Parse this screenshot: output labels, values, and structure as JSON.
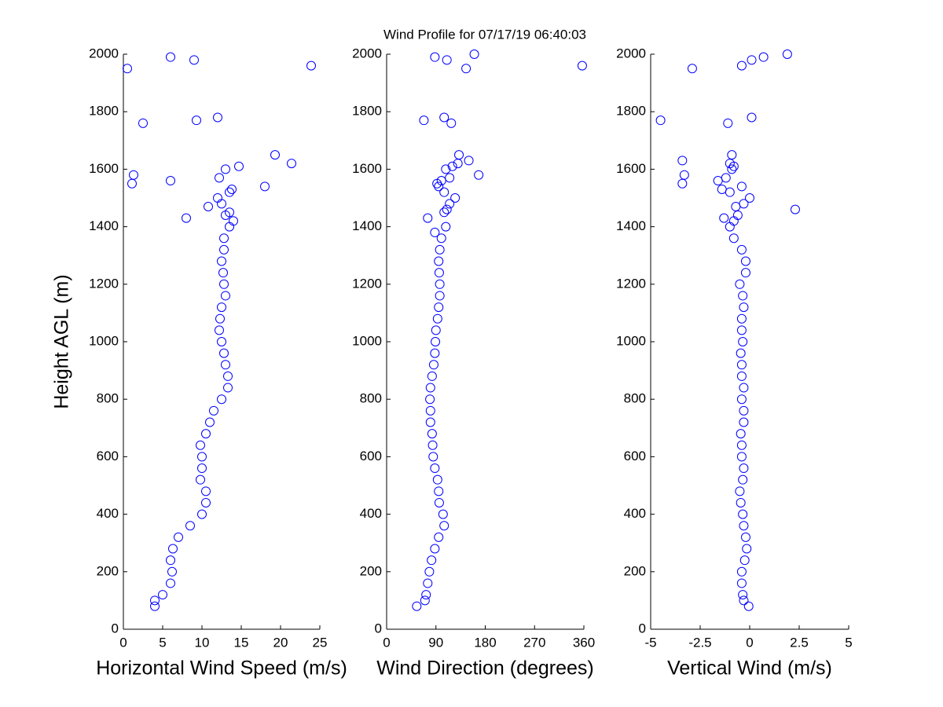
{
  "chart_data": [
    {
      "type": "scatter",
      "title": "Wind Profile for  07/17/19 06:40:03",
      "ylabel": "Height AGL (m)",
      "xlabel": "Horizontal Wind Speed (m/s)",
      "color": "#0000ff",
      "xlim": [
        0,
        25
      ],
      "xticks": [
        0,
        5,
        10,
        15,
        20,
        25
      ],
      "ylim": [
        0,
        2000
      ],
      "yticks": [
        0,
        200,
        400,
        600,
        800,
        1000,
        1200,
        1400,
        1600,
        1800,
        2000
      ],
      "x": [
        4,
        4,
        5,
        6,
        6.2,
        6,
        6.3,
        7,
        8.5,
        10,
        10.5,
        10.5,
        9.8,
        10,
        10,
        9.8,
        10.5,
        11,
        11.5,
        12.5,
        13.3,
        13.3,
        13,
        12.8,
        12.5,
        12.2,
        12.3,
        12.5,
        13,
        12.8,
        12.7,
        12.5,
        12.8,
        12.8,
        13.5,
        14,
        13,
        13.5,
        12.5,
        10.8,
        12,
        13.5,
        13.8,
        8,
        12.2,
        13,
        14.7,
        18,
        19.3,
        21.4,
        6,
        1.3,
        1.1,
        2.5,
        9.3,
        12,
        0.5,
        6,
        9,
        23.9
      ],
      "y": [
        80,
        100,
        120,
        160,
        200,
        240,
        280,
        320,
        360,
        400,
        440,
        480,
        520,
        560,
        600,
        640,
        680,
        720,
        760,
        800,
        840,
        880,
        920,
        960,
        1000,
        1040,
        1080,
        1120,
        1160,
        1200,
        1240,
        1280,
        1320,
        1360,
        1400,
        1420,
        1440,
        1450,
        1480,
        1470,
        1500,
        1520,
        1530,
        1430,
        1570,
        1600,
        1610,
        1540,
        1650,
        1620,
        1560,
        1580,
        1550,
        1760,
        1770,
        1780,
        1950,
        1990,
        1980,
        1960
      ]
    },
    {
      "type": "scatter",
      "xlabel": "Wind Direction (degrees)",
      "color": "#0000ff",
      "xlim": [
        0,
        360
      ],
      "xticks": [
        0,
        90,
        180,
        270,
        360
      ],
      "ylim": [
        0,
        2000
      ],
      "yticks": [
        0,
        200,
        400,
        600,
        800,
        1000,
        1200,
        1400,
        1600,
        1800,
        2000
      ],
      "x": [
        55,
        70,
        72,
        75,
        78,
        82,
        88,
        95,
        105,
        103,
        96,
        95,
        93,
        88,
        85,
        84,
        83,
        80,
        80,
        79,
        80,
        83,
        86,
        88,
        89,
        90,
        93,
        95,
        97,
        97,
        96,
        95,
        97,
        100,
        108,
        88,
        75,
        110,
        115,
        105,
        125,
        105,
        95,
        92,
        100,
        115,
        108,
        120,
        130,
        150,
        132,
        168,
        68,
        105,
        118,
        88,
        110,
        160,
        145,
        357
      ],
      "y": [
        80,
        100,
        120,
        160,
        200,
        240,
        280,
        320,
        360,
        400,
        440,
        480,
        520,
        560,
        600,
        640,
        680,
        720,
        760,
        800,
        840,
        880,
        920,
        960,
        1000,
        1040,
        1080,
        1120,
        1160,
        1200,
        1240,
        1280,
        1320,
        1360,
        1400,
        1380,
        1430,
        1460,
        1480,
        1450,
        1500,
        1520,
        1540,
        1550,
        1560,
        1570,
        1600,
        1610,
        1620,
        1630,
        1650,
        1580,
        1770,
        1780,
        1760,
        1990,
        1980,
        2000,
        1950,
        1960
      ]
    },
    {
      "type": "scatter",
      "xlabel": "Vertical Wind (m/s)",
      "color": "#0000ff",
      "xlim": [
        -5,
        5
      ],
      "xticks": [
        -5,
        -2.5,
        0,
        2.5,
        5
      ],
      "ylim": [
        0,
        2000
      ],
      "yticks": [
        0,
        200,
        400,
        600,
        800,
        1000,
        1200,
        1400,
        1600,
        1800,
        2000
      ],
      "x": [
        -0.05,
        -0.3,
        -0.35,
        -0.4,
        -0.4,
        -0.25,
        -0.15,
        -0.2,
        -0.3,
        -0.35,
        -0.45,
        -0.5,
        -0.35,
        -0.3,
        -0.4,
        -0.4,
        -0.45,
        -0.3,
        -0.3,
        -0.4,
        -0.3,
        -0.4,
        -0.4,
        -0.45,
        -0.35,
        -0.4,
        -0.4,
        -0.3,
        -0.35,
        -0.5,
        -0.2,
        -0.2,
        -0.4,
        -0.8,
        -1,
        -0.8,
        -0.6,
        -0.7,
        -1.3,
        -0.3,
        0,
        2.3,
        -1,
        -0.4,
        -1.6,
        -1.2,
        -3.4,
        -3.3,
        -3.4,
        -0.9,
        -1,
        -0.8,
        -0.9,
        -1.4,
        -4.5,
        -1.1,
        0.1,
        -2.9,
        -0.4,
        0.1,
        0.7,
        1.9
      ],
      "y": [
        80,
        100,
        120,
        160,
        200,
        240,
        280,
        320,
        360,
        400,
        440,
        480,
        520,
        560,
        600,
        640,
        680,
        720,
        760,
        800,
        840,
        880,
        920,
        960,
        1000,
        1040,
        1080,
        1120,
        1160,
        1200,
        1240,
        1280,
        1320,
        1360,
        1400,
        1420,
        1440,
        1470,
        1430,
        1480,
        1500,
        1460,
        1520,
        1540,
        1560,
        1570,
        1550,
        1580,
        1630,
        1600,
        1620,
        1610,
        1650,
        1530,
        1770,
        1760,
        1780,
        1950,
        1960,
        1980,
        1990,
        2000
      ]
    }
  ]
}
